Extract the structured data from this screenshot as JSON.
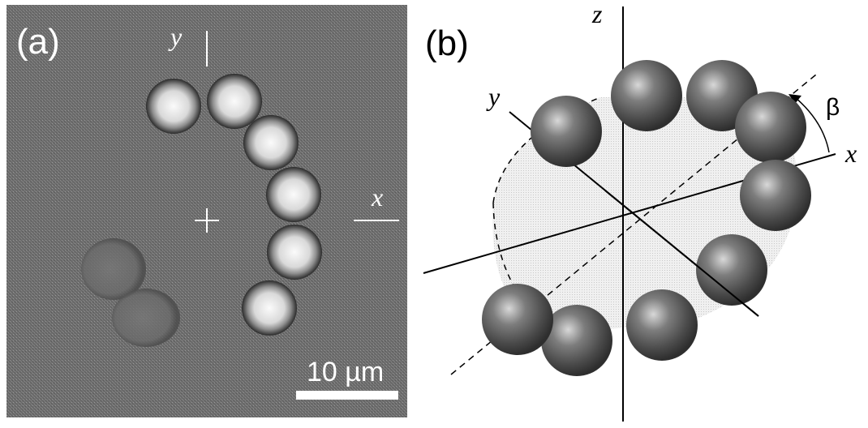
{
  "panel_a": {
    "label": "(a)",
    "y_axis_label": "y",
    "x_axis_label": "x",
    "scale_bar_label": "10 µm",
    "colors": {
      "background": "#6e6e6e",
      "bead_light": "#f2f2f2",
      "bead_dark": "#2a2a2a",
      "scale_bar": "#ffffff"
    }
  },
  "panel_b": {
    "label": "(b)",
    "z_axis_label": "z",
    "y_axis_label": "y",
    "x_axis_label": "x",
    "angle_label": "β",
    "colors": {
      "sphere": "#5a5a5a",
      "sphere_highlight": "#d8d8d8",
      "plane_fill": "#e6e6e6",
      "axis": "#000000"
    }
  }
}
